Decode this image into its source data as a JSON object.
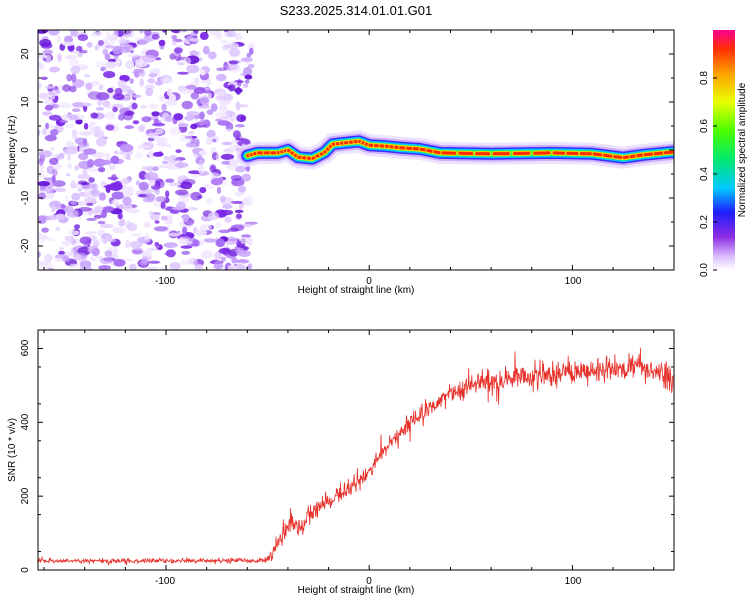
{
  "title": "S233.2025.314.01.01.G01",
  "colors": {
    "snr_line": "#e8302a",
    "noise_purple": "#7a28e6",
    "frame": "#000000"
  },
  "chart_data": [
    {
      "type": "heatmap",
      "name": "spectrogram",
      "xlabel": "Height of straight line (km)",
      "ylabel": "Frequency (Hz)",
      "xlim": [
        -163,
        150
      ],
      "ylim": [
        -25,
        25
      ],
      "xticks": [
        -100,
        0,
        100
      ],
      "xtick_labels": [
        "-100",
        "0",
        "100"
      ],
      "yticks": [
        -20,
        -10,
        0,
        10,
        20
      ],
      "ytick_labels": [
        "-20",
        "-10",
        "0",
        "10",
        "20"
      ],
      "noise_region_x": [
        -163,
        -58
      ],
      "ridge": [
        {
          "x": -60,
          "y": -1.2
        },
        {
          "x": -55,
          "y": -0.6
        },
        {
          "x": -45,
          "y": -0.6
        },
        {
          "x": -40,
          "y": 0.0
        },
        {
          "x": -35,
          "y": -1.5
        },
        {
          "x": -28,
          "y": -1.8
        },
        {
          "x": -22,
          "y": -0.5
        },
        {
          "x": -18,
          "y": 1.2
        },
        {
          "x": -12,
          "y": 1.5
        },
        {
          "x": -5,
          "y": 1.8
        },
        {
          "x": 0,
          "y": 1.0
        },
        {
          "x": 8,
          "y": 0.8
        },
        {
          "x": 15,
          "y": 0.5
        },
        {
          "x": 25,
          "y": 0.2
        },
        {
          "x": 35,
          "y": -0.6
        },
        {
          "x": 60,
          "y": -0.8
        },
        {
          "x": 90,
          "y": -0.6
        },
        {
          "x": 110,
          "y": -0.8
        },
        {
          "x": 125,
          "y": -1.6
        },
        {
          "x": 135,
          "y": -1.0
        },
        {
          "x": 150,
          "y": -0.4
        }
      ],
      "colorbar": {
        "label": "Normalized spectral amplitude",
        "range": [
          0,
          1
        ],
        "ticks": [
          0.0,
          0.2,
          0.4,
          0.6,
          0.8
        ],
        "tick_labels": [
          "0.0",
          "0.2",
          "0.4",
          "0.6",
          "0.8"
        ]
      }
    },
    {
      "type": "line",
      "name": "snr",
      "xlabel": "Height of straight line (km)",
      "ylabel": "SNR (10 * v/v)",
      "xlim": [
        -163,
        150
      ],
      "ylim": [
        0,
        650
      ],
      "xticks": [
        -100,
        0,
        100
      ],
      "xtick_labels": [
        "-100",
        "0",
        "100"
      ],
      "yticks": [
        0,
        200,
        400,
        600
      ],
      "ytick_labels": [
        "0",
        "200",
        "400",
        "600"
      ],
      "series": [
        {
          "name": "SNR",
          "x": [
            -163,
            -140,
            -120,
            -100,
            -80,
            -60,
            -52,
            -48,
            -45,
            -42,
            -38,
            -34,
            -30,
            -25,
            -20,
            -15,
            -10,
            -5,
            0,
            5,
            10,
            15,
            20,
            25,
            30,
            35,
            40,
            50,
            60,
            70,
            80,
            90,
            100,
            110,
            120,
            130,
            140,
            150
          ],
          "values": [
            25,
            25,
            25,
            25,
            25,
            25,
            25,
            40,
            80,
            100,
            130,
            110,
            150,
            170,
            185,
            200,
            220,
            240,
            270,
            310,
            340,
            370,
            400,
            420,
            440,
            460,
            480,
            500,
            510,
            520,
            525,
            530,
            535,
            540,
            545,
            550,
            535,
            520
          ],
          "noise": [
            8,
            8,
            8,
            8,
            8,
            8,
            10,
            15,
            35,
            50,
            45,
            40,
            35,
            30,
            30,
            30,
            30,
            30,
            30,
            30,
            30,
            30,
            30,
            35,
            35,
            35,
            40,
            45,
            45,
            45,
            45,
            45,
            45,
            45,
            45,
            45,
            45,
            45
          ]
        }
      ]
    }
  ]
}
